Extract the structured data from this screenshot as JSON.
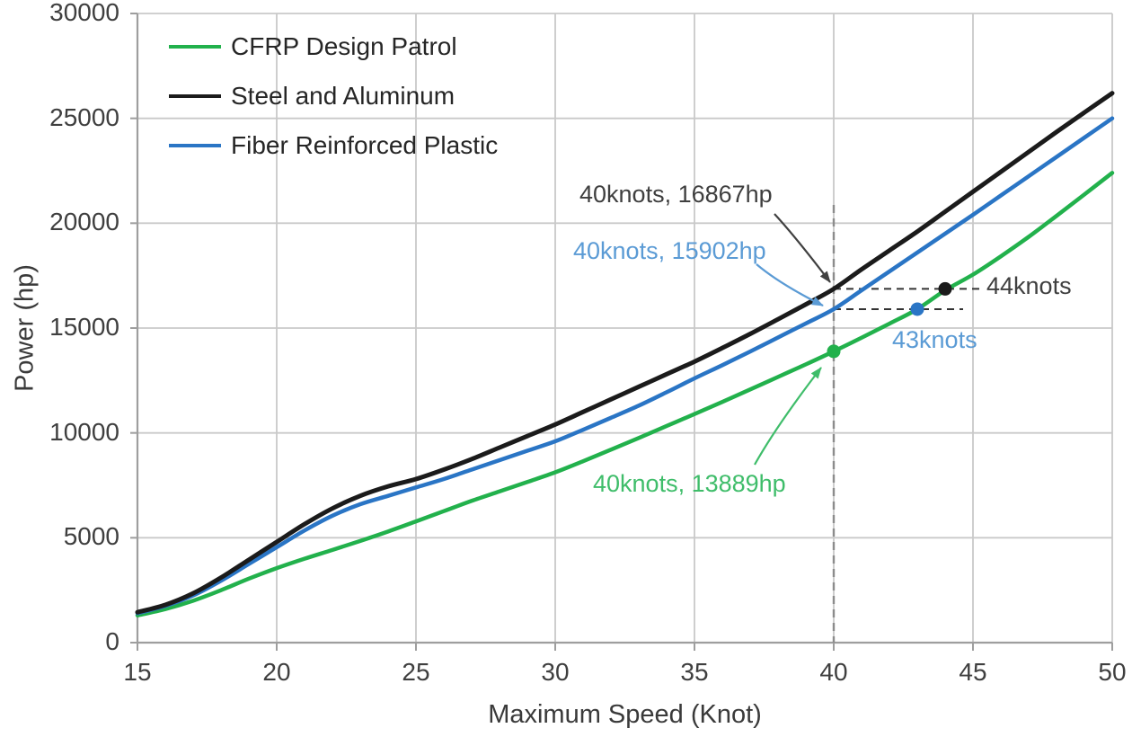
{
  "chart_data": {
    "type": "line",
    "title": "",
    "xlabel": "Maximum Speed (Knot)",
    "ylabel": "Power (hp)",
    "xlim": [
      15,
      50
    ],
    "ylim": [
      0,
      30000
    ],
    "xticks": [
      15,
      20,
      25,
      30,
      35,
      40,
      45,
      50
    ],
    "yticks": [
      0,
      5000,
      10000,
      15000,
      20000,
      25000,
      30000
    ],
    "grid": true,
    "legend_position": "top-left",
    "x": [
      15,
      16,
      17,
      18,
      19,
      20,
      21,
      22,
      23,
      24,
      25,
      26,
      27,
      28,
      29,
      30,
      31,
      32,
      33,
      34,
      35,
      36,
      37,
      38,
      39,
      40,
      41,
      42,
      43,
      44,
      45,
      46,
      47,
      48,
      49,
      50
    ],
    "series": [
      {
        "name": "CFRP Design Patrol",
        "color": "#22B14C",
        "values": [
          1300,
          1600,
          2000,
          2500,
          3050,
          3550,
          4000,
          4420,
          4850,
          5300,
          5780,
          6270,
          6760,
          7210,
          7660,
          8120,
          8650,
          9200,
          9760,
          10330,
          10900,
          11480,
          12070,
          12670,
          13270,
          13889,
          14540,
          15210,
          15902,
          16800,
          17550,
          18420,
          19350,
          20350,
          21370,
          22400
        ]
      },
      {
        "name": "Steel and Aluminum",
        "color": "#1B1B1B",
        "values": [
          1450,
          1800,
          2350,
          3100,
          3950,
          4800,
          5650,
          6400,
          7000,
          7450,
          7800,
          8250,
          8750,
          9300,
          9850,
          10400,
          11000,
          11600,
          12200,
          12800,
          13400,
          14050,
          14720,
          15420,
          16130,
          16867,
          17800,
          18700,
          19600,
          20550,
          21500,
          22450,
          23400,
          24350,
          25280,
          26200
        ]
      },
      {
        "name": "Fiber Reinforced Plastic",
        "color": "#2A75C5",
        "values": [
          1400,
          1750,
          2250,
          2950,
          3750,
          4550,
          5350,
          6050,
          6600,
          7000,
          7400,
          7800,
          8250,
          8700,
          9150,
          9600,
          10150,
          10720,
          11300,
          11940,
          12600,
          13230,
          13880,
          14550,
          15220,
          15902,
          16800,
          17700,
          18600,
          19500,
          20400,
          21320,
          22240,
          23160,
          24080,
          25000
        ]
      }
    ],
    "markers": [
      {
        "x": 40,
        "y": 13889,
        "color": "#22B14C"
      },
      {
        "x": 43,
        "y": 15902,
        "color": "#2A75C5"
      },
      {
        "x": 44,
        "y": 16867,
        "color": "#1B1B1B"
      }
    ],
    "annotations": [
      {
        "text": "40knots, 16867hp",
        "color": "#3F3F3F"
      },
      {
        "text": "40knots, 15902hp",
        "color": "#5B9BD5"
      },
      {
        "text": "40knots, 13889hp",
        "color": "#3FBD6A"
      },
      {
        "text": "44knots",
        "color": "#3F3F3F"
      },
      {
        "text": "43knots",
        "color": "#5B9BD5"
      }
    ],
    "reference_lines": {
      "vertical_dashed_at_x": 40,
      "horizontal_dashed_at_y": [
        16867,
        15902
      ]
    }
  }
}
